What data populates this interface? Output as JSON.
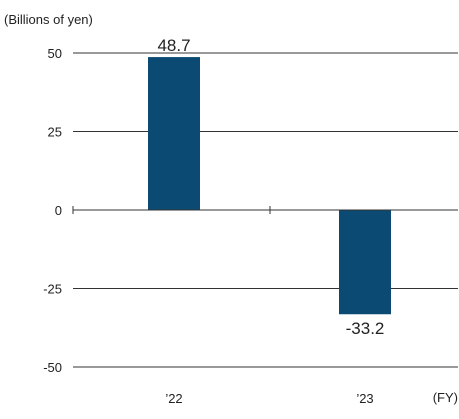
{
  "chart_data": {
    "type": "bar",
    "title": "",
    "unit_label": "(Billions of yen)",
    "xlabel": "(FY)",
    "ylabel": "",
    "categories": [
      "’22",
      "’23"
    ],
    "values": [
      48.7,
      -33.2
    ],
    "data_labels": [
      "48.7",
      "-33.2"
    ],
    "ylim": [
      -50,
      50
    ],
    "yticks": [
      50,
      25,
      0,
      -25,
      -50
    ],
    "ytick_labels": [
      "50",
      "25",
      "0",
      "-25",
      "-50"
    ],
    "grid": "horizontal",
    "legend": "none",
    "colors": {
      "bar": "#0b4a72",
      "grid": "#333333",
      "text": "#222222"
    }
  }
}
